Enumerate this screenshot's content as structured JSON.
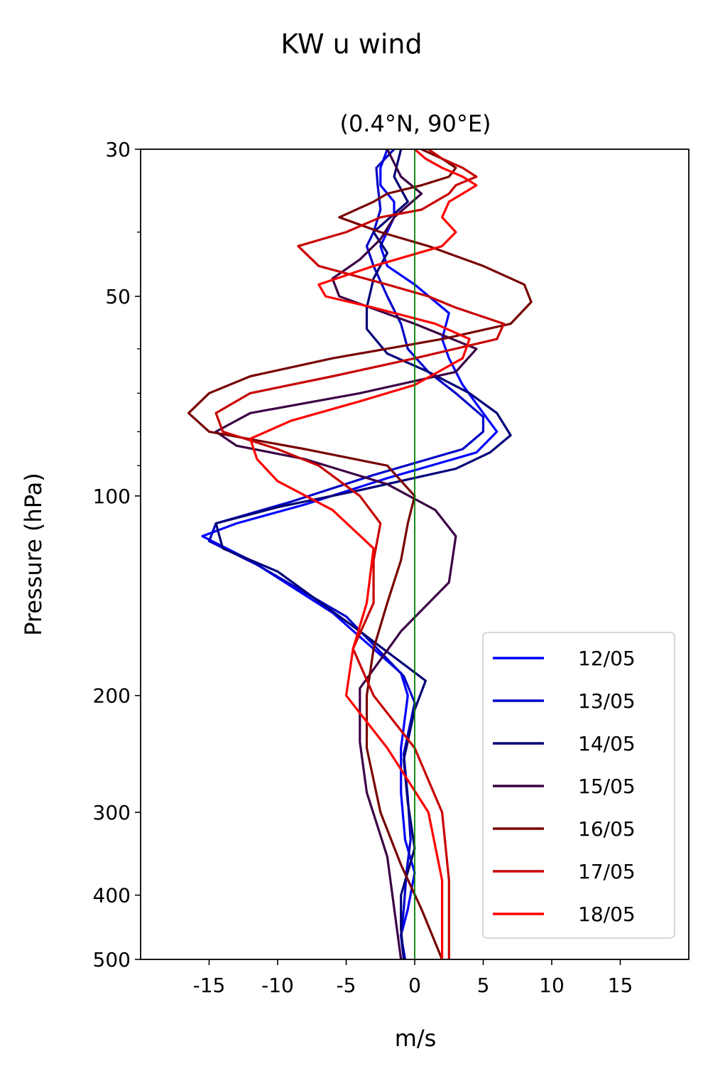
{
  "chart_data": {
    "type": "line",
    "title": "KW u wind",
    "subtitle": "(0.4°N, 90°E)",
    "xlabel": "m/s",
    "ylabel": "Pressure (hPa)",
    "xlim": [
      -20,
      20
    ],
    "ylim": [
      500,
      30
    ],
    "y_scale": "log",
    "x_ticks": [
      -15,
      -10,
      -5,
      0,
      5,
      10,
      15
    ],
    "x_tick_labels": [
      "-15",
      "-10",
      "-5",
      "0",
      "5",
      "10",
      "15"
    ],
    "y_ticks": [
      30,
      50,
      100,
      200,
      300,
      400,
      500
    ],
    "y_tick_labels": [
      "30",
      "50",
      "100",
      "200",
      "300",
      "400",
      "500"
    ],
    "y_minor_ticks": [
      40,
      60,
      70,
      80,
      90
    ],
    "zero_line": {
      "x": 0,
      "color": "#008000"
    },
    "grid": false,
    "legend_position": "lower-right",
    "series": [
      {
        "name": "12/05",
        "color": "#0000ff",
        "u": [
          -2.0,
          -2.5,
          -2.5,
          -1.5,
          -1.5,
          -2.5,
          -2.0,
          0,
          2.5,
          2.0,
          2.5,
          3.5,
          5.0,
          6.0,
          4.5,
          -2.0,
          -8.0,
          -13.0,
          -15.5,
          -12.0,
          -6.0,
          -1.0,
          -0.5,
          -1.0,
          -1.0,
          -0.7,
          0.0,
          -0.5,
          -1.0,
          -0.7
        ],
        "p": [
          30,
          32,
          34,
          36,
          38,
          42,
          45,
          48,
          53,
          58,
          62,
          68,
          75,
          80,
          86,
          94,
          103,
          110,
          115,
          125,
          150,
          185,
          200,
          240,
          280,
          330,
          370,
          420,
          460,
          500
        ]
      },
      {
        "name": "13/05",
        "color": "#0000c8",
        "u": [
          -1.5,
          -2.8,
          -2.7,
          -2.5,
          -3.0,
          -3.5,
          -3.0,
          -2.0,
          -1.0,
          -0.5,
          1.0,
          3.0,
          5.0,
          5.0,
          3.5,
          -3.0,
          -9.0,
          -14.5,
          -15.0,
          -11.5,
          -5.0,
          -0.8,
          0.0,
          -0.8,
          -0.5,
          -0.3,
          -0.6,
          -0.8,
          -1.0,
          -0.8
        ],
        "p": [
          30,
          32,
          34,
          37,
          40,
          42,
          45,
          50,
          55,
          60,
          65,
          70,
          76,
          80,
          85,
          93,
          102,
          110,
          117,
          127,
          152,
          187,
          205,
          245,
          285,
          330,
          370,
          420,
          460,
          500
        ]
      },
      {
        "name": "14/05",
        "color": "#000078",
        "u": [
          -1.0,
          -1.5,
          -0.5,
          -3.0,
          -2.0,
          -3.0,
          -3.5,
          -3.5,
          -2.0,
          1.0,
          4.0,
          6.0,
          7.0,
          5.5,
          3.0,
          -4.0,
          -10.0,
          -14.5,
          -14.0,
          -10.0,
          -4.0,
          0.8,
          0.0,
          -0.8,
          -0.5,
          0.0,
          -1.0,
          -1.0,
          -0.8
        ],
        "p": [
          30,
          33,
          36,
          40,
          43,
          47,
          52,
          56,
          61,
          65,
          70,
          75,
          81,
          86,
          91,
          98,
          104,
          110,
          120,
          130,
          160,
          190,
          210,
          250,
          290,
          340,
          400,
          450,
          500
        ]
      },
      {
        "name": "15/05",
        "color": "#3c0046",
        "u": [
          -2.0,
          -1.0,
          0.5,
          -1.5,
          -2.5,
          -4.0,
          -6.0,
          -5.5,
          0.0,
          4.5,
          3.0,
          -4.0,
          -12.0,
          -14.5,
          -13.0,
          -8.0,
          -2.0,
          1.5,
          3.0,
          2.5,
          -1.0,
          -4.0,
          -4.0,
          -3.5,
          -2.0,
          -1.0
        ],
        "p": [
          30,
          33,
          35,
          38,
          41,
          44,
          47,
          50,
          55,
          60,
          65,
          70,
          75,
          80,
          84,
          88,
          96,
          105,
          115,
          135,
          160,
          195,
          235,
          280,
          350,
          500
        ]
      },
      {
        "name": "16/05",
        "color": "#780000",
        "u": [
          0.5,
          2.0,
          3.0,
          2.5,
          0.5,
          -2.0,
          -3.0,
          -5.5,
          -2.5,
          1.0,
          5.0,
          8.0,
          8.5,
          7.0,
          2.0,
          -6.0,
          -12.0,
          -15.0,
          -16.5,
          -15.0,
          -8.0,
          -2.0,
          0.0,
          -0.5,
          -1.0,
          -2.0,
          -3.0,
          -3.5,
          -3.5,
          -2.5,
          -1.0,
          0.5,
          2.0
        ],
        "p": [
          30,
          31,
          32,
          33,
          34,
          35,
          36,
          38,
          40,
          42,
          45,
          48,
          51,
          55,
          58,
          62,
          66,
          70,
          75,
          80,
          85,
          90,
          100,
          110,
          125,
          145,
          170,
          200,
          240,
          300,
          360,
          420,
          500
        ]
      },
      {
        "name": "17/05",
        "color": "#c80000",
        "u": [
          1.0,
          2.0,
          3.5,
          4.5,
          3.0,
          2.5,
          0.5,
          -2.5,
          -5.0,
          -8.5,
          -7.0,
          -2.0,
          1.0,
          3.0,
          6.5,
          6.0,
          0.0,
          -6.0,
          -12.0,
          -14.5,
          -14.0,
          -10.0,
          -7.0,
          -4.0,
          -2.5,
          -3.0,
          -3.0,
          -4.5,
          -3.0,
          0.0,
          2.0,
          2.5,
          2.5
        ],
        "p": [
          30,
          31,
          32,
          33,
          34,
          35,
          37,
          38,
          40,
          42,
          45,
          48,
          50,
          52,
          55,
          58,
          62,
          66,
          70,
          75,
          80,
          85,
          90,
          100,
          110,
          125,
          145,
          170,
          200,
          240,
          300,
          380,
          500
        ]
      },
      {
        "name": "18/05",
        "color": "#ff0000",
        "u": [
          0.0,
          0.8,
          2.0,
          3.5,
          4.5,
          3.5,
          2.5,
          2.0,
          3.0,
          2.0,
          -3.0,
          -7.0,
          -6.5,
          -3.0,
          1.5,
          4.0,
          3.5,
          0.0,
          -4.0,
          -9.0,
          -12.0,
          -11.5,
          -10.0,
          -6.0,
          -3.0,
          -3.5,
          -4.5,
          -5.0,
          -2.0,
          1.0,
          2.0,
          2.0
        ],
        "p": [
          30,
          31,
          32,
          33,
          34,
          35,
          36,
          38,
          40,
          42,
          45,
          48,
          50,
          52,
          55,
          58,
          62,
          68,
          72,
          77,
          82,
          88,
          95,
          105,
          120,
          145,
          170,
          200,
          240,
          300,
          380,
          500
        ]
      }
    ]
  }
}
